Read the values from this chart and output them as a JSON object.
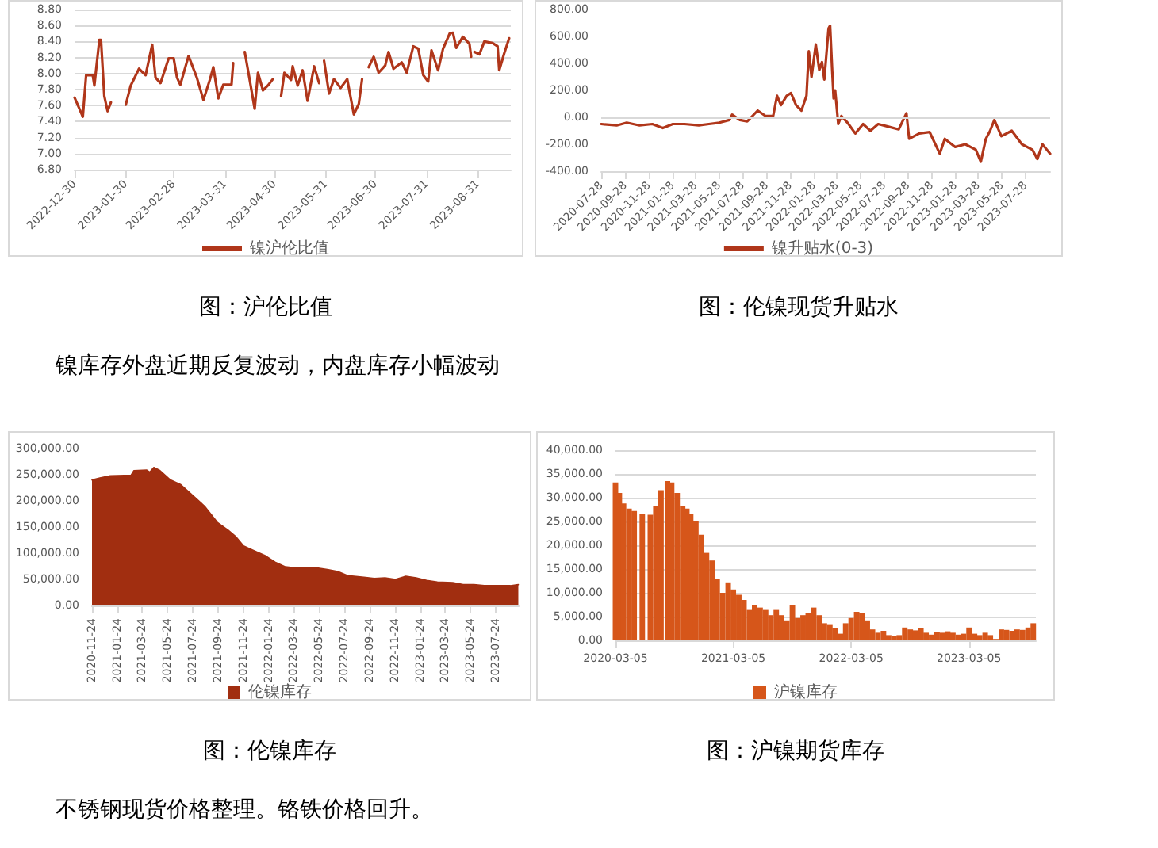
{
  "chart_data": [
    {
      "type": "line",
      "title": "图：沪伦比值",
      "legend": "bottom",
      "grid": "y",
      "xlim": [
        "2022-12-30",
        "2023-09-20"
      ],
      "xticks": [
        "2022-12-30",
        "2023-01-30",
        "2023-02-28",
        "2023-03-31",
        "2023-04-30",
        "2023-05-31",
        "2023-06-30",
        "2023-07-31",
        "2023-08-31"
      ],
      "ylim": [
        6.8,
        8.8
      ],
      "yticks": [
        {
          "value": 6.8,
          "label": "6.80"
        },
        {
          "value": 7,
          "label": "7.00"
        },
        {
          "value": 7.2,
          "label": "7.20"
        },
        {
          "value": 7.4,
          "label": "7.40"
        },
        {
          "value": 7.6,
          "label": "7.60"
        },
        {
          "value": 7.8,
          "label": "7.80"
        },
        {
          "value": 8,
          "label": "8.00"
        },
        {
          "value": 8.2,
          "label": "8.20"
        },
        {
          "value": 8.4,
          "label": "8.40"
        },
        {
          "value": 8.6,
          "label": "8.60"
        },
        {
          "value": 8.8,
          "label": "8.80"
        }
      ],
      "series": [
        {
          "name": "镍沪伦比值",
          "color": "#b0361a",
          "x": [
            "2022-12-30",
            "2023-01-03",
            "2023-01-04",
            "2023-01-06",
            "2023-01-10",
            "2023-01-11",
            "2023-01-14",
            "2023-01-15",
            "2023-01-17",
            "2023-01-19",
            "2023-01-21",
            "2023-01-25",
            "2023-01-30",
            "2023-02-02",
            "2023-02-07",
            "2023-02-11",
            "2023-02-15",
            "2023-02-17",
            "2023-02-20",
            "2023-02-25",
            "2023-02-28",
            "2023-03-02",
            "2023-03-04",
            "2023-03-09",
            "2023-03-14",
            "2023-03-18",
            "2023-03-22",
            "2023-03-24",
            "2023-03-27",
            "2023-03-30",
            "2023-04-04",
            "2023-04-05",
            "2023-04-09",
            "2023-04-12",
            "2023-04-15",
            "2023-04-18",
            "2023-04-20",
            "2023-04-23",
            "2023-04-26",
            "2023-04-29",
            "2023-05-01",
            "2023-05-04",
            "2023-05-06",
            "2023-05-10",
            "2023-05-11",
            "2023-05-14",
            "2023-05-17",
            "2023-05-20",
            "2023-05-24",
            "2023-05-27",
            "2023-05-28",
            "2023-05-30",
            "2023-06-02",
            "2023-06-05",
            "2023-06-09",
            "2023-06-13",
            "2023-06-17",
            "2023-06-20",
            "2023-06-22",
            "2023-06-24",
            "2023-06-26",
            "2023-06-29",
            "2023-07-02",
            "2023-07-06",
            "2023-07-08",
            "2023-07-11",
            "2023-07-16",
            "2023-07-19",
            "2023-07-23",
            "2023-07-26",
            "2023-07-29",
            "2023-08-01",
            "2023-08-03",
            "2023-08-07",
            "2023-08-10",
            "2023-08-14",
            "2023-08-16",
            "2023-08-18",
            "2023-08-22",
            "2023-08-26",
            "2023-08-27",
            "2023-08-28",
            "2023-08-29",
            "2023-09-01",
            "2023-09-04",
            "2023-09-09",
            "2023-09-12",
            "2023-09-13",
            "2023-09-16",
            "2023-09-19"
          ],
          "values": [
            7.7,
            7.51,
            7.46,
            7.98,
            7.98,
            7.85,
            8.42,
            8.42,
            7.72,
            7.53,
            7.64,
            null,
            7.61,
            7.85,
            8.06,
            7.98,
            8.36,
            7.95,
            7.88,
            8.19,
            8.19,
            7.95,
            7.86,
            8.22,
            7.95,
            7.67,
            7.93,
            8.08,
            7.69,
            7.86,
            7.86,
            8.13,
            null,
            8.27,
            7.92,
            7.56,
            8.01,
            7.79,
            7.85,
            7.93,
            null,
            7.72,
            8.01,
            7.92,
            8.09,
            7.85,
            8.04,
            7.66,
            8.09,
            7.88,
            null,
            8.16,
            7.75,
            7.93,
            7.82,
            7.93,
            7.49,
            7.62,
            7.93,
            null,
            8.08,
            8.21,
            8.01,
            8.1,
            8.27,
            8.06,
            8.14,
            8.01,
            8.34,
            8.31,
            7.98,
            7.9,
            8.29,
            8.04,
            8.31,
            8.5,
            8.51,
            8.32,
            8.46,
            8.37,
            8.21,
            null,
            8.27,
            8.24,
            8.4,
            8.38,
            8.34,
            8.04,
            8.25,
            8.44
          ]
        }
      ]
    },
    {
      "type": "line",
      "title": "图：伦镍现货升贴水",
      "legend": "bottom",
      "grid": false,
      "xlim": [
        "2020-07-28",
        "2023-09-30"
      ],
      "xticks": [
        "2020-07-28",
        "2020-09-28",
        "2020-11-28",
        "2021-01-28",
        "2021-03-28",
        "2021-05-28",
        "2021-07-28",
        "2021-09-28",
        "2021-11-28",
        "2022-01-28",
        "2022-03-28",
        "2022-05-28",
        "2022-07-28",
        "2022-09-28",
        "2022-11-28",
        "2023-01-28",
        "2023-03-28",
        "2023-05-28",
        "2023-07-28"
      ],
      "ylim": [
        -400,
        800
      ],
      "yticks": [
        {
          "value": -400,
          "label": "-400.00"
        },
        {
          "value": -200,
          "label": "-200.00"
        },
        {
          "value": 0,
          "label": "0.00"
        },
        {
          "value": 200,
          "label": "200.00"
        },
        {
          "value": 400,
          "label": "400.00"
        },
        {
          "value": 600,
          "label": "600.00"
        },
        {
          "value": 800,
          "label": "800.00"
        }
      ],
      "series": [
        {
          "name": "镍升贴水(0-3)",
          "color": "#b0361a",
          "x": [
            "2020-07-28",
            "2020-09-06",
            "2020-10-02",
            "2020-11-04",
            "2020-12-07",
            "2021-01-03",
            "2021-01-29",
            "2021-02-28",
            "2021-04-06",
            "2021-05-02",
            "2021-05-29",
            "2021-06-24",
            "2021-07-01",
            "2021-07-21",
            "2021-08-09",
            "2021-09-05",
            "2021-09-25",
            "2021-10-15",
            "2021-10-25",
            "2021-11-04",
            "2021-11-19",
            "2021-11-30",
            "2021-12-13",
            "2021-12-27",
            "2022-01-09",
            "2022-01-15",
            "2022-01-22",
            "2022-02-02",
            "2022-02-11",
            "2022-02-18",
            "2022-02-24",
            "2022-03-07",
            "2022-03-11",
            "2022-03-16",
            "2022-03-20",
            "2022-03-24",
            "2022-04-01",
            "2022-04-09",
            "2022-04-25",
            "2022-05-15",
            "2022-06-04",
            "2022-06-23",
            "2022-07-13",
            "2022-08-09",
            "2022-09-04",
            "2022-09-24",
            "2022-10-01",
            "2022-10-27",
            "2022-11-23",
            "2022-12-19",
            "2023-01-01",
            "2023-01-28",
            "2023-02-23",
            "2023-03-22",
            "2023-04-04",
            "2023-04-17",
            "2023-04-28",
            "2023-05-09",
            "2023-05-27",
            "2023-06-23",
            "2023-07-19",
            "2023-08-15",
            "2023-08-28",
            "2023-09-10",
            "2023-09-30"
          ],
          "values": [
            -50,
            -60,
            -40,
            -60,
            -50,
            -80,
            -50,
            -50,
            -60,
            -50,
            -40,
            -20,
            20,
            -20,
            -30,
            50,
            10,
            10,
            160,
            90,
            160,
            180,
            90,
            50,
            160,
            490,
            300,
            540,
            350,
            410,
            280,
            660,
            680,
            370,
            140,
            200,
            -50,
            10,
            -40,
            -120,
            -50,
            -100,
            -50,
            -70,
            -90,
            30,
            -160,
            -120,
            -110,
            -270,
            -160,
            -220,
            -200,
            -240,
            -330,
            -160,
            -100,
            -20,
            -140,
            -100,
            -200,
            -240,
            -310,
            -200,
            -270
          ]
        }
      ],
      "ref_lines": [
        {
          "axis": "y",
          "value": 0,
          "color": "#d9d9d9"
        }
      ]
    },
    {
      "type": "area",
      "title": "图：伦镍库存",
      "legend": "bottom",
      "grid": false,
      "annotations": [
        "镍库存外盘近期反复波动，内盘库存小幅波动"
      ],
      "xlim": [
        "2020-11-24",
        "2023-09-18"
      ],
      "xticks": [
        "2020-11-24",
        "2021-01-24",
        "2021-03-24",
        "2021-05-24",
        "2021-07-24",
        "2021-09-24",
        "2021-11-24",
        "2022-01-24",
        "2022-03-24",
        "2022-05-24",
        "2022-07-24",
        "2022-09-24",
        "2022-11-24",
        "2023-01-24",
        "2023-03-24",
        "2023-05-24",
        "2023-07-24"
      ],
      "ylim": [
        0,
        300000
      ],
      "yticks": [
        {
          "value": 0,
          "label": "0.00"
        },
        {
          "value": 50000,
          "label": "50,000.00"
        },
        {
          "value": 100000,
          "label": "100,000.00"
        },
        {
          "value": 150000,
          "label": "150,000.00"
        },
        {
          "value": 200000,
          "label": "200,000.00"
        },
        {
          "value": 250000,
          "label": "250,000.00"
        },
        {
          "value": 300000,
          "label": "300,000.00"
        }
      ],
      "series": [
        {
          "name": "伦镍库存",
          "color": "#a12e10",
          "x": [
            "2020-11-24",
            "2020-12-13",
            "2021-01-07",
            "2021-02-26",
            "2021-03-05",
            "2021-04-05",
            "2021-04-12",
            "2021-04-22",
            "2021-05-07",
            "2021-06-01",
            "2021-06-26",
            "2021-07-21",
            "2021-08-22",
            "2021-09-22",
            "2021-10-18",
            "2021-11-05",
            "2021-11-24",
            "2021-12-19",
            "2022-01-14",
            "2022-02-08",
            "2022-03-05",
            "2022-03-30",
            "2022-05-20",
            "2022-06-14",
            "2022-07-09",
            "2022-08-03",
            "2022-09-10",
            "2022-10-05",
            "2022-10-31",
            "2022-11-25",
            "2022-12-20",
            "2023-01-14",
            "2023-02-08",
            "2023-03-06",
            "2023-04-12",
            "2023-05-07",
            "2023-06-02",
            "2023-06-27",
            "2023-07-22",
            "2023-08-29",
            "2023-09-17"
          ],
          "values": [
            240000,
            244000,
            248000,
            249000,
            258000,
            259000,
            255000,
            264000,
            258000,
            240000,
            231000,
            213000,
            190000,
            159000,
            144000,
            132000,
            114000,
            105000,
            96000,
            83000,
            74000,
            72000,
            72000,
            69000,
            65000,
            57000,
            54000,
            52000,
            53000,
            50000,
            56000,
            53000,
            48000,
            45000,
            44000,
            40000,
            40000,
            38000,
            38000,
            38000,
            40000
          ]
        }
      ]
    },
    {
      "type": "bar",
      "title": "图：沪镍期货库存",
      "legend": "bottom",
      "grid": "y",
      "annotations": [
        "不锈钢现货价格整理。铬铁价格回升。"
      ],
      "xlim": [
        "2020-03-05",
        "2023-09-28"
      ],
      "xticks": [
        "2020-03-05",
        "2021-03-05",
        "2022-03-05",
        "2023-03-05"
      ],
      "ylim": [
        0,
        40000
      ],
      "yticks": [
        {
          "value": 0,
          "label": "0.00"
        },
        {
          "value": 5000,
          "label": "5,000.00"
        },
        {
          "value": 10000,
          "label": "10,000.00"
        },
        {
          "value": 15000,
          "label": "15,000.00"
        },
        {
          "value": 20000,
          "label": "20,000.00"
        },
        {
          "value": 25000,
          "label": "25,000.00"
        },
        {
          "value": 30000,
          "label": "30,000.00"
        },
        {
          "value": 35000,
          "label": "35,000.00"
        },
        {
          "value": 40000,
          "label": "40,000.00"
        }
      ],
      "series": [
        {
          "name": "沪镍库存",
          "color": "#d6561a",
          "x": [
            "2020-03-05",
            "2020-03-17",
            "2020-03-30",
            "2020-04-16",
            "2020-05-02",
            "2020-05-27",
            "2020-06-21",
            "2020-07-08",
            "2020-07-24",
            "2020-08-13",
            "2020-08-26",
            "2020-09-12",
            "2020-09-29",
            "2020-10-12",
            "2020-10-24",
            "2020-11-09",
            "2020-11-26",
            "2020-12-12",
            "2020-12-29",
            "2021-01-14",
            "2021-01-31",
            "2021-02-17",
            "2021-03-05",
            "2021-03-22",
            "2021-04-07",
            "2021-04-24",
            "2021-05-10",
            "2021-05-27",
            "2021-06-13",
            "2021-06-29",
            "2021-07-16",
            "2021-08-01",
            "2021-08-18",
            "2021-09-04",
            "2021-09-20",
            "2021-10-07",
            "2021-10-23",
            "2021-11-09",
            "2021-11-26",
            "2021-12-12",
            "2021-12-29",
            "2022-01-14",
            "2022-01-31",
            "2022-02-16",
            "2022-03-05",
            "2022-03-22",
            "2022-04-07",
            "2022-04-24",
            "2022-05-10",
            "2022-05-27",
            "2022-06-13",
            "2022-06-29",
            "2022-07-16",
            "2022-08-01",
            "2022-08-18",
            "2022-09-04",
            "2022-09-20",
            "2022-10-07",
            "2022-10-23",
            "2022-11-09",
            "2022-11-26",
            "2022-12-12",
            "2022-12-29",
            "2023-01-14",
            "2023-01-31",
            "2023-02-16",
            "2023-03-05",
            "2023-03-22",
            "2023-04-07",
            "2023-04-24",
            "2023-05-10",
            "2023-05-27",
            "2023-06-13",
            "2023-06-29",
            "2023-07-16",
            "2023-08-01",
            "2023-08-18",
            "2023-09-04",
            "2023-09-20"
          ],
          "values": [
            33200,
            31000,
            28800,
            27700,
            27200,
            26600,
            26400,
            28300,
            31600,
            33500,
            33200,
            31000,
            28300,
            27700,
            26600,
            25000,
            22200,
            18400,
            16800,
            12900,
            10000,
            12200,
            10700,
            9600,
            8500,
            6400,
            7500,
            6900,
            6400,
            5300,
            6400,
            5300,
            4200,
            7500,
            4700,
            5300,
            5800,
            6900,
            5300,
            3600,
            3400,
            2500,
            1400,
            3600,
            4700,
            6000,
            5800,
            4200,
            2300,
            1600,
            2000,
            1100,
            900,
            1100,
            2700,
            2300,
            2100,
            2500,
            1600,
            1200,
            1800,
            1600,
            1900,
            1600,
            1200,
            1400,
            2700,
            1400,
            1100,
            1600,
            1100,
            300,
            2300,
            2200,
            2000,
            2300,
            2200,
            2700,
            3600
          ]
        }
      ]
    }
  ]
}
